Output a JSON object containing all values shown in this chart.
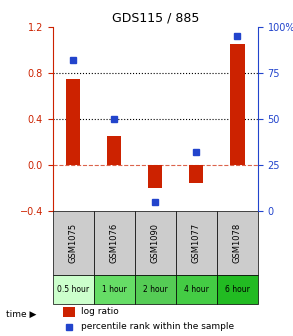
{
  "title": "GDS115 / 885",
  "samples": [
    "GSM1075",
    "GSM1076",
    "GSM1090",
    "GSM1077",
    "GSM1078"
  ],
  "time_labels": [
    "0.5 hour",
    "1 hour",
    "2 hour",
    "4 hour",
    "6 hour"
  ],
  "time_colors": [
    "#ccffcc",
    "#66dd66",
    "#55cc55",
    "#44cc44",
    "#22bb22"
  ],
  "log_ratios": [
    0.75,
    0.25,
    -0.2,
    -0.15,
    1.05
  ],
  "percentiles": [
    82,
    50,
    5,
    32,
    95
  ],
  "bar_color": "#cc2200",
  "dot_color": "#2244cc",
  "left_ylim": [
    -0.4,
    1.2
  ],
  "right_ylim": [
    0,
    100
  ],
  "left_yticks": [
    -0.4,
    0.0,
    0.4,
    0.8,
    1.2
  ],
  "right_yticks": [
    0,
    25,
    50,
    75,
    100
  ],
  "right_yticklabels": [
    "0",
    "25",
    "50",
    "75",
    "100%"
  ],
  "hline_dotted": [
    0.4,
    0.8
  ],
  "hline_dashed": 0.0,
  "legend_bar_label": "log ratio",
  "legend_dot_label": "percentile rank within the sample"
}
